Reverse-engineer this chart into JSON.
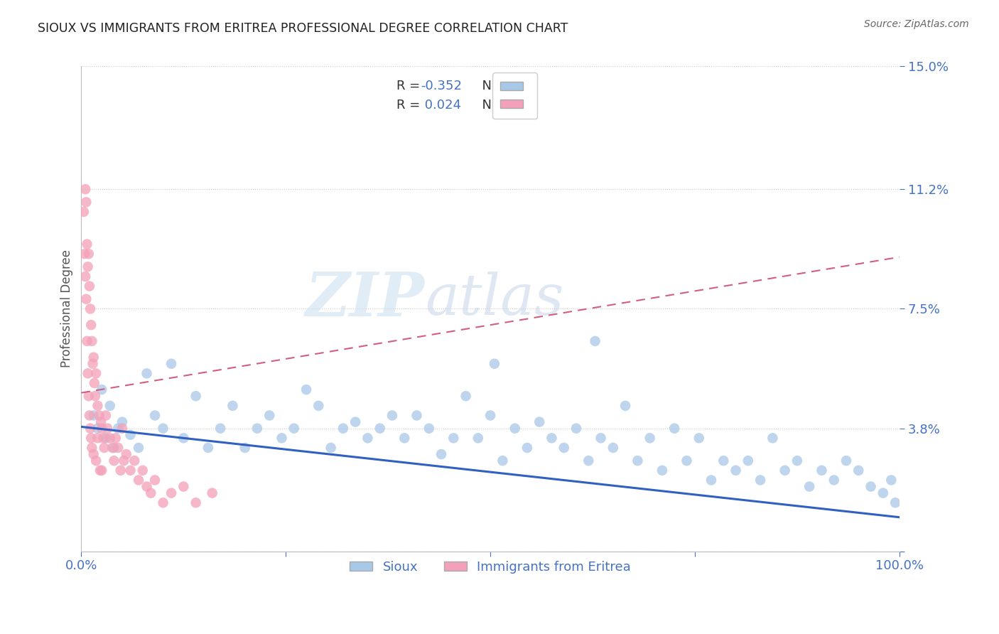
{
  "title": "SIOUX VS IMMIGRANTS FROM ERITREA PROFESSIONAL DEGREE CORRELATION CHART",
  "source_text": "Source: ZipAtlas.com",
  "ylabel": "Professional Degree",
  "xlim": [
    0.0,
    100.0
  ],
  "ylim": [
    0.0,
    15.0
  ],
  "yticks": [
    0.0,
    3.8,
    7.5,
    11.2,
    15.0
  ],
  "ytick_labels": [
    "",
    "3.8%",
    "7.5%",
    "11.2%",
    "15.0%"
  ],
  "xticks": [
    0.0,
    25.0,
    50.0,
    75.0,
    100.0
  ],
  "xtick_labels": [
    "0.0%",
    "",
    "",
    "",
    "100.0%"
  ],
  "grid_color": "#cccccc",
  "watermark_zip": "ZIP",
  "watermark_atlas": "atlas",
  "sioux_color": "#a8c8e8",
  "eritrea_color": "#f4a0b8",
  "sioux_line_color": "#3060c0",
  "eritrea_line_color": "#d06080",
  "tick_color": "#4472c4",
  "legend_r_color": "#000000",
  "legend_val_color": "#4472c4",
  "sioux_line_intercept": 3.85,
  "sioux_line_slope": -0.028,
  "eritrea_line_intercept": 4.9,
  "eritrea_line_slope": 0.042,
  "sioux_x": [
    1.5,
    2.0,
    2.5,
    3.0,
    3.5,
    4.0,
    4.5,
    5.0,
    6.0,
    7.0,
    8.0,
    9.0,
    10.0,
    11.0,
    12.5,
    14.0,
    15.5,
    17.0,
    18.5,
    20.0,
    21.5,
    23.0,
    24.5,
    26.0,
    27.5,
    29.0,
    30.5,
    32.0,
    33.5,
    35.0,
    36.5,
    38.0,
    39.5,
    41.0,
    42.5,
    44.0,
    45.5,
    47.0,
    48.5,
    50.0,
    51.5,
    53.0,
    54.5,
    56.0,
    57.5,
    59.0,
    60.5,
    62.0,
    63.5,
    65.0,
    66.5,
    68.0,
    69.5,
    71.0,
    72.5,
    74.0,
    75.5,
    77.0,
    78.5,
    80.0,
    81.5,
    83.0,
    84.5,
    86.0,
    87.5,
    89.0,
    90.5,
    92.0,
    93.5,
    95.0,
    96.5,
    98.0,
    99.0,
    99.5,
    50.5,
    62.8
  ],
  "sioux_y": [
    4.2,
    3.8,
    5.0,
    3.5,
    4.5,
    3.2,
    3.8,
    4.0,
    3.6,
    3.2,
    5.5,
    4.2,
    3.8,
    5.8,
    3.5,
    4.8,
    3.2,
    3.8,
    4.5,
    3.2,
    3.8,
    4.2,
    3.5,
    3.8,
    5.0,
    4.5,
    3.2,
    3.8,
    4.0,
    3.5,
    3.8,
    4.2,
    3.5,
    4.2,
    3.8,
    3.0,
    3.5,
    4.8,
    3.5,
    4.2,
    2.8,
    3.8,
    3.2,
    4.0,
    3.5,
    3.2,
    3.8,
    2.8,
    3.5,
    3.2,
    4.5,
    2.8,
    3.5,
    2.5,
    3.8,
    2.8,
    3.5,
    2.2,
    2.8,
    2.5,
    2.8,
    2.2,
    3.5,
    2.5,
    2.8,
    2.0,
    2.5,
    2.2,
    2.8,
    2.5,
    2.0,
    1.8,
    2.2,
    1.5,
    5.8,
    6.5
  ],
  "eritrea_x": [
    0.3,
    0.4,
    0.5,
    0.5,
    0.6,
    0.6,
    0.7,
    0.7,
    0.8,
    0.8,
    0.9,
    0.9,
    1.0,
    1.0,
    1.1,
    1.1,
    1.2,
    1.2,
    1.3,
    1.3,
    1.4,
    1.5,
    1.5,
    1.6,
    1.7,
    1.8,
    1.8,
    2.0,
    2.0,
    2.2,
    2.3,
    2.4,
    2.5,
    2.5,
    2.7,
    2.8,
    3.0,
    3.2,
    3.5,
    3.8,
    4.0,
    4.2,
    4.5,
    4.8,
    5.0,
    5.2,
    5.5,
    6.0,
    6.5,
    7.0,
    7.5,
    8.0,
    8.5,
    9.0,
    10.0,
    11.0,
    12.5,
    14.0,
    16.0
  ],
  "eritrea_y": [
    10.5,
    9.2,
    11.2,
    8.5,
    10.8,
    7.8,
    9.5,
    6.5,
    8.8,
    5.5,
    9.2,
    4.8,
    8.2,
    4.2,
    7.5,
    3.8,
    7.0,
    3.5,
    6.5,
    3.2,
    5.8,
    6.0,
    3.0,
    5.2,
    4.8,
    5.5,
    2.8,
    4.5,
    3.5,
    4.2,
    2.5,
    4.0,
    3.8,
    2.5,
    3.5,
    3.2,
    4.2,
    3.8,
    3.5,
    3.2,
    2.8,
    3.5,
    3.2,
    2.5,
    3.8,
    2.8,
    3.0,
    2.5,
    2.8,
    2.2,
    2.5,
    2.0,
    1.8,
    2.2,
    1.5,
    1.8,
    2.0,
    1.5,
    1.8
  ]
}
